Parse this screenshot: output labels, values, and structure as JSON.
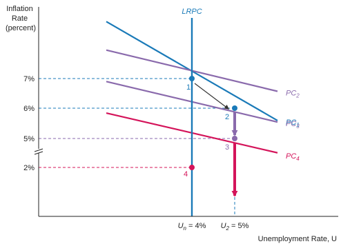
{
  "chart_data": {
    "type": "line",
    "title": "",
    "ylabel_lines": [
      "Inflation",
      "Rate",
      "(percent)"
    ],
    "xlabel": "Unemployment Rate, U",
    "lrpc_label": "LRPC",
    "y_ticks": [
      {
        "label": "7%",
        "value": 7,
        "color": "#222222"
      },
      {
        "label": "6%",
        "value": 6,
        "color": "#222222"
      },
      {
        "label": "5%",
        "value": 5,
        "color": "#222222"
      },
      {
        "label": "2%",
        "value": 2,
        "color": "#2a8bc4"
      }
    ],
    "x_ticks": [
      {
        "label": "Un = 4%",
        "main": "U",
        "sub": "n",
        "rest": " = 4%",
        "value": 4
      },
      {
        "label": "U2 = 5%",
        "main": "U",
        "sub": "2",
        "rest": " = 5%",
        "value": 5
      }
    ],
    "lrpc": {
      "x": 4,
      "color": "#1a7ab8"
    },
    "series": [
      {
        "name": "PC1",
        "main": "PC",
        "sub": "1",
        "color": "#1a7ab8",
        "start": [
          2,
          8.9
        ],
        "end": [
          6,
          5.6
        ]
      },
      {
        "name": "PC2",
        "main": "PC",
        "sub": "2",
        "color": "#8a6aac",
        "start": [
          2,
          7.95
        ],
        "end": [
          6,
          4.6
        ]
      },
      {
        "name": "PC3",
        "main": "PC",
        "sub": "3",
        "color": "#8a6aac",
        "start": [
          2,
          6.9
        ],
        "end": [
          6,
          3.55
        ]
      },
      {
        "name": "PC4",
        "main": "PC",
        "sub": "4",
        "color": "#d4145a",
        "start": [
          2,
          5.85
        ],
        "end": [
          6,
          2.5
        ]
      }
    ],
    "points": [
      {
        "label": "1",
        "x": 4,
        "y": 7,
        "color": "#1a7ab8"
      },
      {
        "label": "2",
        "x": 5,
        "y": 6,
        "color": "#1a7ab8"
      },
      {
        "label": "3",
        "x": 5,
        "y": 5,
        "color": "#8a6aac"
      },
      {
        "label": "4",
        "x": 4,
        "y": 2,
        "color": "#d4145a"
      }
    ],
    "ref_lines": [
      {
        "y": 7,
        "x_to": 4,
        "color": "#1a7ab8"
      },
      {
        "y": 6,
        "x_to": 5,
        "color": "#1a7ab8"
      },
      {
        "y": 5,
        "x_to": 5,
        "color": "#8a6aac"
      },
      {
        "y": 2,
        "x_to": 4,
        "color": "#d4145a"
      }
    ],
    "axis_break": true,
    "grid": false,
    "legend": "none"
  }
}
